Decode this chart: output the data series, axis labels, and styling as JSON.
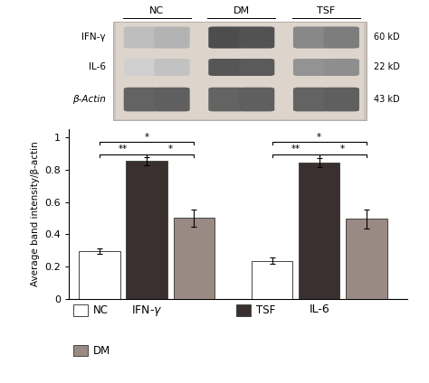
{
  "groups": [
    "IFN-γ",
    "IL-6"
  ],
  "conditions": [
    "NC",
    "TSF",
    "DM"
  ],
  "values": {
    "IFN-γ": {
      "NC": 0.295,
      "TSF": 0.855,
      "DM": 0.5
    },
    "IL-6": {
      "NC": 0.235,
      "TSF": 0.845,
      "DM": 0.495
    }
  },
  "errors": {
    "IFN-γ": {
      "NC": 0.015,
      "TSF": 0.025,
      "DM": 0.055
    },
    "IL-6": {
      "NC": 0.02,
      "TSF": 0.03,
      "DM": 0.06
    }
  },
  "bar_colors": {
    "NC": "#ffffff",
    "TSF": "#3a3030",
    "DM": "#9a8a84"
  },
  "bar_edgecolors": {
    "NC": "#444444",
    "TSF": "#444444",
    "DM": "#444444"
  },
  "ylabel": "Average band intensity/β-actin",
  "ylim": [
    0,
    1.0
  ],
  "yticks": [
    0,
    0.2,
    0.4,
    0.6,
    0.8,
    1
  ],
  "legend_labels_col1": [
    "NC",
    "DM"
  ],
  "legend_labels_col2": [
    "TSF"
  ],
  "legend_colors": {
    "NC": "#ffffff",
    "DM": "#9a8a84",
    "TSF": "#3a3030"
  },
  "blot_row_labels": [
    "IFN-γ",
    "IL-6",
    "β-Actin"
  ],
  "blot_kd_labels": [
    "60 kD",
    "22 kD",
    "43 kD"
  ],
  "group_labels_on_blot": [
    "NC",
    "DM",
    "TSF"
  ],
  "blot_bg_color": "#d8cfc8",
  "blot_outer_bg": "#e8e0d8"
}
